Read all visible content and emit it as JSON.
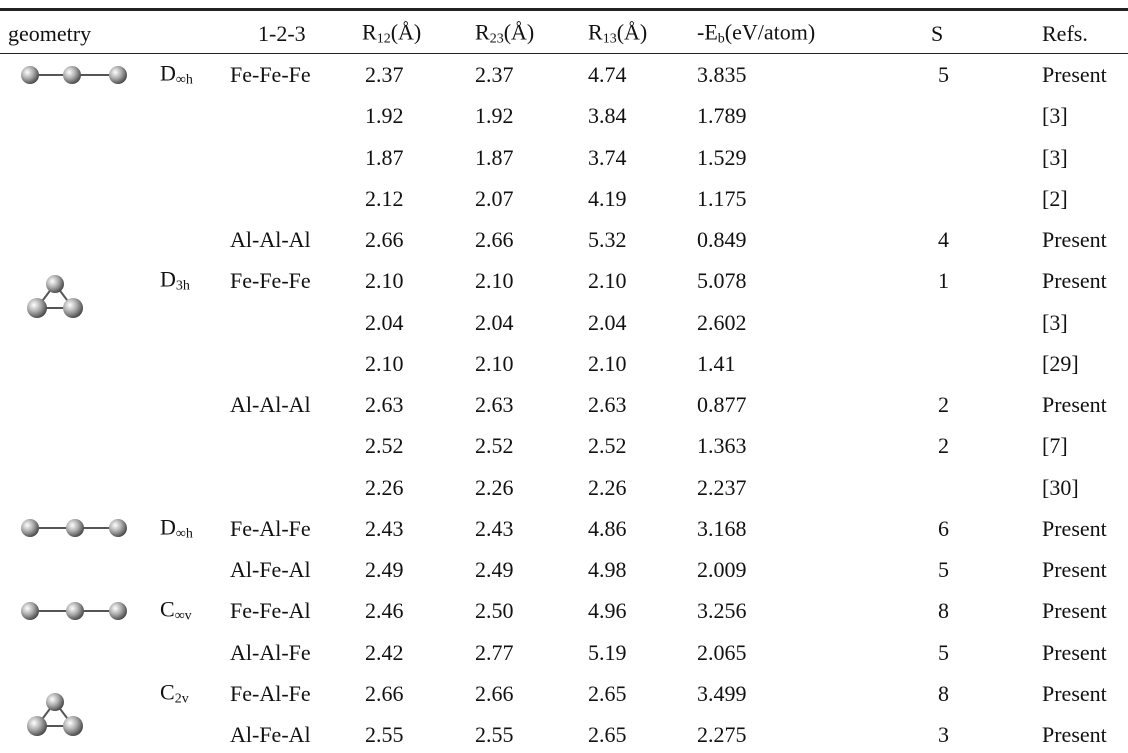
{
  "table": {
    "header": [
      {
        "main": "geometry"
      },
      {
        "main": "1-2-3"
      },
      {
        "main": "R",
        "sub": "12",
        "rest": "(Å)"
      },
      {
        "main": "R",
        "sub": "23",
        "rest": "(Å)"
      },
      {
        "main": "R",
        "sub": "13",
        "rest": "(Å)"
      },
      {
        "main": "-E",
        "sub": "b",
        "rest": "(eV/atom)"
      },
      {
        "main": "S"
      },
      {
        "main": "Refs."
      }
    ],
    "rows": [
      {
        "sym": {
          "main": "D",
          "sub": "∞h"
        },
        "cells": [
          "Fe-Fe-Fe",
          "2.37",
          "2.37",
          "4.74",
          "3.835",
          "5",
          "Present"
        ]
      },
      {
        "cells": [
          null,
          "1.92",
          "1.92",
          "3.84",
          "1.789",
          null,
          "[3]"
        ]
      },
      {
        "cells": [
          null,
          "1.87",
          "1.87",
          "3.74",
          "1.529",
          null,
          "[3]"
        ]
      },
      {
        "cells": [
          null,
          "2.12",
          "2.07",
          "4.19",
          "1.175",
          null,
          "[2]"
        ]
      },
      {
        "cells": [
          "Al-Al-Al",
          "2.66",
          "2.66",
          "5.32",
          "0.849",
          "4",
          "Present"
        ]
      },
      {
        "sym": {
          "main": "D",
          "sub": "3h"
        },
        "cells": [
          "Fe-Fe-Fe",
          "2.10",
          "2.10",
          "2.10",
          "5.078",
          "1",
          "Present"
        ]
      },
      {
        "cells": [
          null,
          "2.04",
          "2.04",
          "2.04",
          "2.602",
          null,
          "[3]"
        ]
      },
      {
        "cells": [
          null,
          "2.10",
          "2.10",
          "2.10",
          "1.41",
          null,
          "[29]"
        ]
      },
      {
        "cells": [
          "Al-Al-Al",
          "2.63",
          "2.63",
          "2.63",
          "0.877",
          "2",
          "Present"
        ]
      },
      {
        "cells": [
          null,
          "2.52",
          "2.52",
          "2.52",
          "1.363",
          "2",
          "[7]"
        ]
      },
      {
        "cells": [
          null,
          "2.26",
          "2.26",
          "2.26",
          "2.237",
          null,
          "[30]"
        ]
      },
      {
        "sym": {
          "main": "D",
          "sub": "∞h"
        },
        "cells": [
          "Fe-Al-Fe",
          "2.43",
          "2.43",
          "4.86",
          "3.168",
          "6",
          "Present"
        ]
      },
      {
        "cells": [
          "Al-Fe-Al",
          "2.49",
          "2.49",
          "4.98",
          "2.009",
          "5",
          "Present"
        ]
      },
      {
        "sym": {
          "main": "C",
          "sub": "∞v"
        },
        "cells": [
          "Fe-Fe-Al",
          "2.46",
          "2.50",
          "4.96",
          "3.256",
          "8",
          "Present"
        ]
      },
      {
        "cells": [
          "Al-Al-Fe",
          "2.42",
          "2.77",
          "5.19",
          "2.065",
          "5",
          "Present"
        ]
      },
      {
        "sym": {
          "main": "C",
          "sub": "2v"
        },
        "cells": [
          "Fe-Al-Fe",
          "2.66",
          "2.66",
          "2.65",
          "3.499",
          "8",
          "Present"
        ]
      },
      {
        "cells": [
          "Al-Fe-Al",
          "2.55",
          "2.55",
          "2.65",
          "2.275",
          "3",
          "Present"
        ]
      }
    ]
  }
}
